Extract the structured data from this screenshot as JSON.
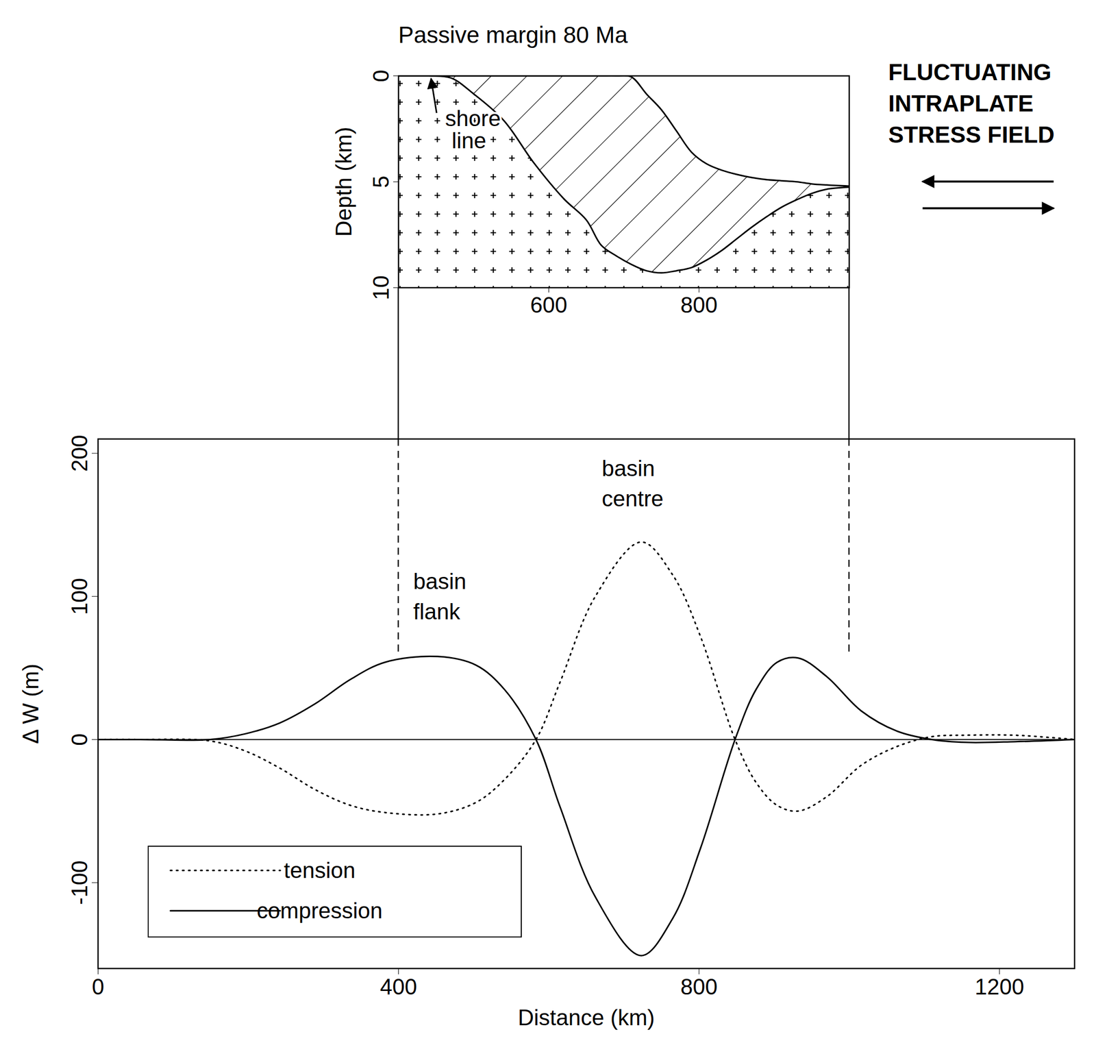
{
  "chart_data": [
    {
      "type": "area",
      "title": "Passive margin 80 Ma",
      "y_label": "Depth (km)",
      "x": [
        400,
        440,
        470,
        500,
        540,
        580,
        620,
        650,
        670,
        690,
        710,
        730,
        750,
        770,
        790,
        810,
        830,
        850,
        870,
        890,
        910,
        930,
        950,
        970,
        1000
      ],
      "series": [
        {
          "color": "#000000",
          "values": [
            0,
            0,
            0.1,
            0.85,
            2.1,
            4.1,
            5.8,
            6.8,
            8.0,
            8.5,
            8.9,
            9.2,
            9.3,
            9.2,
            9.05,
            8.7,
            8.25,
            7.7,
            7.15,
            6.65,
            6.2,
            5.85,
            5.55,
            5.35,
            5.25
          ]
        },
        {
          "color": "#000000",
          "values": [
            0,
            0,
            0,
            0,
            0,
            0,
            0,
            0,
            0,
            0,
            0.05,
            0.85,
            1.6,
            2.6,
            3.6,
            4.15,
            4.45,
            4.65,
            4.8,
            4.9,
            4.95,
            5.0,
            5.1,
            5.15,
            5.2
          ]
        }
      ],
      "xlim": [
        400,
        1000
      ],
      "xticks": [
        600,
        800
      ],
      "ylim": [
        10,
        0
      ],
      "yticks": [
        0,
        5,
        10
      ],
      "annotations": [
        {
          "text": "shore line",
          "x": 443,
          "y": 0
        }
      ],
      "side_label": "FLUCTUATING INTRAPLATE STRESS FIELD"
    },
    {
      "type": "line",
      "x_label": "Distance (km)",
      "y_label": "Δ W (m)",
      "x": [
        0,
        56,
        149,
        196,
        242,
        289,
        336,
        382,
        452,
        503,
        541,
        583,
        615,
        662,
        723,
        765,
        802,
        848,
        876,
        904,
        932,
        970,
        1016,
        1063,
        1110,
        1156,
        1221,
        1300
      ],
      "series": [
        {
          "name": "tension",
          "color": "#000000",
          "line_style": "dotted",
          "values": [
            0,
            0,
            -1,
            -8,
            -20,
            -35,
            -46,
            -51,
            -52,
            -44,
            -28,
            0,
            40,
            100,
            138,
            115,
            72,
            0,
            -30,
            -46,
            -50,
            -40,
            -18,
            -5,
            2,
            3,
            3,
            0
          ]
        },
        {
          "name": "compression",
          "color": "#000000",
          "line_style": "solid",
          "values": [
            0,
            0,
            0,
            4,
            11.6,
            25,
            42,
            54,
            58,
            52,
            35,
            0,
            -47,
            -110,
            -151,
            -125,
            -76,
            0,
            35,
            54,
            57,
            44,
            20,
            6,
            0,
            -2,
            -1.5,
            0
          ]
        }
      ],
      "xlim": [
        0,
        1300
      ],
      "xticks": [
        0,
        400,
        800,
        1200
      ],
      "ylim": [
        -160,
        210
      ],
      "yticks": [
        -100,
        0,
        100,
        200
      ],
      "legend": "lower left",
      "annotations": [
        {
          "text": "basin flank",
          "x": 420,
          "y": 105
        },
        {
          "text": "basin centre",
          "x": 671,
          "y": 184
        }
      ]
    }
  ]
}
